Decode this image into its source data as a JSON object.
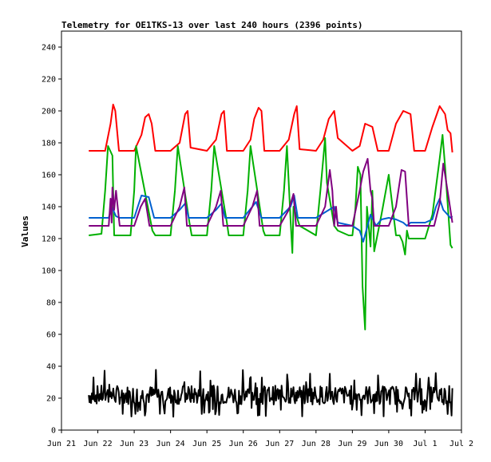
{
  "chart_data": {
    "type": "line",
    "title": "Telemetry for OE1TKS-13 over last 240 hours (2396 points)",
    "xlabel": "",
    "ylabel": "Values",
    "xlim": [
      "Jun 21",
      "Jul 2"
    ],
    "ylim": [
      0,
      250
    ],
    "x_ticks": [
      "Jun 21",
      "Jun 22",
      "Jun 23",
      "Jun 24",
      "Jun 25",
      "Jun 26",
      "Jun 27",
      "Jun 28",
      "Jun 29",
      "Jun 30",
      "Jul 1",
      "Jul 2"
    ],
    "y_ticks": [
      0,
      20,
      40,
      60,
      80,
      100,
      120,
      140,
      160,
      180,
      200,
      220,
      240
    ],
    "grid": false,
    "legend": "none",
    "series": [
      {
        "color": "#ff0000",
        "x": [
          21.75,
          22.2,
          22.35,
          22.42,
          22.48,
          22.58,
          23.0,
          23.2,
          23.3,
          23.4,
          23.48,
          23.58,
          24.0,
          24.25,
          24.4,
          24.47,
          24.55,
          25.0,
          25.25,
          25.4,
          25.47,
          25.55,
          26.0,
          26.2,
          26.3,
          26.42,
          26.5,
          26.58,
          27.0,
          27.25,
          27.4,
          27.47,
          27.55,
          28.0,
          28.2,
          28.35,
          28.5,
          28.6,
          29.0,
          29.2,
          29.35,
          29.55,
          29.7,
          30.0,
          30.2,
          30.4,
          30.6,
          30.7,
          31.0,
          31.2,
          31.4,
          31.55,
          31.62,
          31.7,
          31.75
        ],
        "y": [
          175,
          175,
          192,
          204,
          200,
          175,
          175,
          185,
          196,
          198,
          192,
          175,
          175,
          180,
          198,
          200,
          177,
          175,
          182,
          198,
          200,
          175,
          175,
          182,
          195,
          202,
          200,
          175,
          175,
          182,
          198,
          203,
          176,
          175,
          182,
          195,
          200,
          183,
          175,
          178,
          192,
          190,
          175,
          175,
          192,
          200,
          198,
          175,
          175,
          190,
          203,
          198,
          188,
          186,
          174
        ]
      },
      {
        "color": "#00b000",
        "x": [
          21.75,
          22.1,
          22.2,
          22.28,
          22.4,
          22.45,
          22.9,
          23.0,
          23.05,
          23.5,
          23.58,
          24.0,
          24.12,
          24.2,
          24.52,
          24.58,
          25.0,
          25.12,
          25.2,
          25.55,
          25.6,
          26.0,
          26.12,
          26.2,
          26.55,
          26.6,
          27.0,
          27.12,
          27.2,
          27.3,
          27.35,
          27.38,
          27.55,
          28.0,
          28.12,
          28.2,
          28.25,
          28.3,
          28.5,
          28.6,
          28.9,
          29.0,
          29.08,
          29.15,
          29.22,
          29.28,
          29.35,
          29.4,
          29.5,
          29.55,
          29.6,
          29.8,
          30.0,
          30.05,
          30.2,
          30.3,
          30.38,
          30.45,
          30.5,
          30.55,
          31.0,
          31.2,
          31.4,
          31.48,
          31.55,
          31.7,
          31.75
        ],
        "y": [
          122,
          123,
          150,
          178,
          172,
          122,
          122,
          150,
          178,
          125,
          122,
          122,
          150,
          178,
          130,
          122,
          122,
          150,
          178,
          130,
          122,
          122,
          150,
          178,
          125,
          122,
          122,
          150,
          178,
          132,
          111,
          140,
          128,
          122,
          150,
          170,
          183,
          155,
          128,
          125,
          122,
          122,
          138,
          165,
          160,
          90,
          63,
          140,
          115,
          150,
          112,
          135,
          160,
          150,
          122,
          122,
          118,
          110,
          125,
          120,
          120,
          135,
          170,
          185,
          165,
          116,
          114
        ]
      },
      {
        "color": "#0060d0",
        "x": [
          21.75,
          22.3,
          22.38,
          22.5,
          22.6,
          23.0,
          23.1,
          23.2,
          23.4,
          23.55,
          24.0,
          24.25,
          24.4,
          24.5,
          25.0,
          25.25,
          25.4,
          25.5,
          26.0,
          26.25,
          26.35,
          26.5,
          27.0,
          27.3,
          27.4,
          27.5,
          28.0,
          28.5,
          28.6,
          29.0,
          29.2,
          29.3,
          29.5,
          29.65,
          29.8,
          30.0,
          30.2,
          30.4,
          30.5,
          30.6,
          31.0,
          31.2,
          31.3,
          31.4,
          31.5,
          31.7,
          31.75
        ],
        "y": [
          133,
          133,
          140,
          134,
          133,
          133,
          140,
          147,
          146,
          133,
          133,
          138,
          142,
          133,
          133,
          138,
          142,
          133,
          133,
          140,
          143,
          133,
          133,
          140,
          147,
          133,
          133,
          140,
          130,
          128,
          125,
          118,
          135,
          128,
          132,
          133,
          132,
          130,
          128,
          130,
          130,
          132,
          140,
          145,
          138,
          133,
          134
        ]
      },
      {
        "color": "#800080",
        "x": [
          21.75,
          22.3,
          22.35,
          22.38,
          22.4,
          22.45,
          22.5,
          22.6,
          23.0,
          23.18,
          23.3,
          23.42,
          23.5,
          24.0,
          24.25,
          24.38,
          24.45,
          25.0,
          25.25,
          25.38,
          25.45,
          26.0,
          26.25,
          26.38,
          26.45,
          27.0,
          27.25,
          27.38,
          27.45,
          28.0,
          28.25,
          28.38,
          28.45,
          28.5,
          28.55,
          28.6,
          29.0,
          29.2,
          29.3,
          29.42,
          29.5,
          29.55,
          29.6,
          30.0,
          30.2,
          30.35,
          30.45,
          30.55,
          31.0,
          31.25,
          31.4,
          31.5,
          31.55,
          31.65,
          31.75
        ],
        "y": [
          128,
          128,
          145,
          130,
          152,
          138,
          150,
          128,
          128,
          140,
          145,
          128,
          128,
          128,
          140,
          152,
          128,
          128,
          140,
          150,
          128,
          128,
          140,
          150,
          128,
          128,
          138,
          148,
          128,
          128,
          140,
          163,
          150,
          128,
          140,
          128,
          128,
          150,
          162,
          170,
          150,
          145,
          128,
          128,
          140,
          163,
          162,
          128,
          128,
          128,
          142,
          167,
          160,
          145,
          130
        ]
      },
      {
        "color": "#000000",
        "x": [
          21.75,
          22.7,
          23.5,
          24.5,
          25.5,
          26.5,
          27.5,
          28.5,
          29.5,
          30.5,
          31.5,
          31.75
        ],
        "y": [
          21,
          22,
          22,
          22,
          22,
          22,
          22,
          22,
          22,
          22,
          22,
          22
        ],
        "jitter": true
      }
    ]
  }
}
